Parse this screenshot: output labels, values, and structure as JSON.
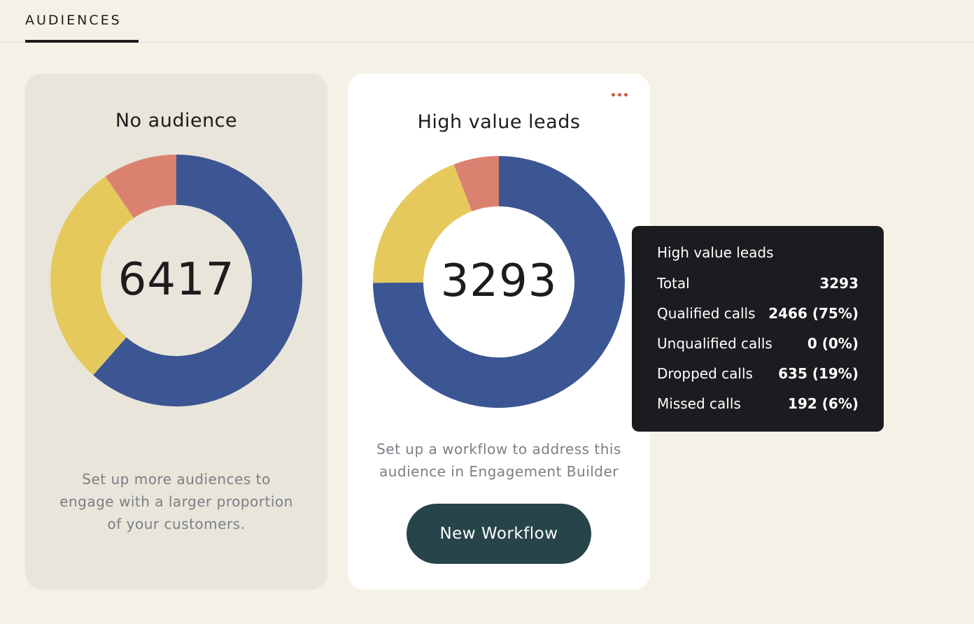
{
  "tabs": {
    "active_label": "AUDIENCES"
  },
  "cards": [
    {
      "title": "No audience",
      "total": "6417",
      "description_lines": [
        "Set up more audiences to",
        "engage with a larger proportion",
        "of your customers."
      ],
      "chart_data": {
        "type": "pie",
        "values": [
          3945,
          1861,
          611
        ],
        "colors": [
          "#3c5694",
          "#e6c95d",
          "#db8170"
        ]
      }
    },
    {
      "title": "High value leads",
      "total": "3293",
      "description_lines": [
        "Set up a workflow to address this",
        "audience in Engagement Builder"
      ],
      "button_label": "New Workflow",
      "more_icon": "more-horizontal-icon",
      "chart_data": {
        "type": "pie",
        "values": [
          2466,
          0,
          635,
          192
        ],
        "colors": [
          "#3c5694",
          "#6b6b6b",
          "#e6c95d",
          "#db8170"
        ]
      }
    }
  ],
  "tooltip": {
    "title": "High value leads",
    "rows": [
      {
        "label": "Total",
        "value": "3293"
      },
      {
        "label": "Qualified calls",
        "value": "2466 (75%)"
      },
      {
        "label": "Unqualified calls",
        "value": "0 (0%)"
      },
      {
        "label": "Dropped calls",
        "value": "635 (19%)"
      },
      {
        "label": "Missed calls",
        "value": "192 (6%)"
      }
    ]
  },
  "colors": {
    "background": "#f5f1e6",
    "accent_dots": "#d1593a",
    "button": "#26444a",
    "tooltip_bg": "#1b1c1f"
  }
}
